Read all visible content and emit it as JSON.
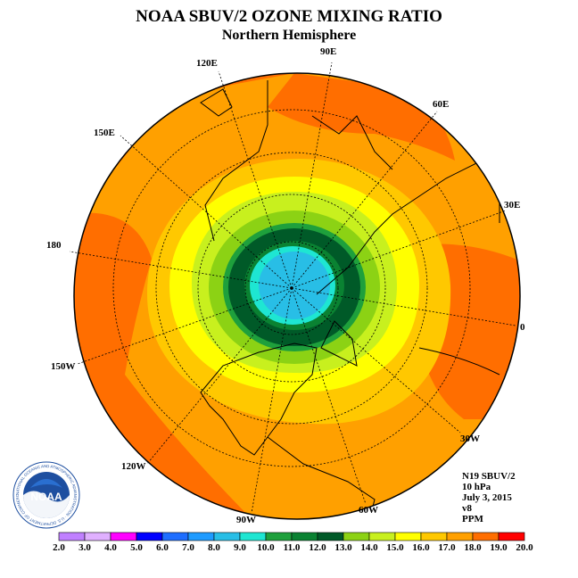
{
  "header": {
    "title": "NOAA SBUV/2 OZONE MIXING RATIO",
    "subtitle": "Northern Hemisphere"
  },
  "map": {
    "projection": "north polar stereographic",
    "longitude_labels": [
      "0",
      "30E",
      "60E",
      "90E",
      "120E",
      "150E",
      "180",
      "150W",
      "120W",
      "90W",
      "60W",
      "30W"
    ],
    "contour_fill_levels_ppm": [
      {
        "from_ppm": 10.0,
        "to_ppm": 11.0,
        "color": "#1ea03c"
      },
      {
        "from_ppm": 11.0,
        "to_ppm": 12.0,
        "color": "#0a8232"
      },
      {
        "from_ppm": 12.0,
        "to_ppm": 13.0,
        "color": "#005a28"
      },
      {
        "from_ppm": 9.0,
        "to_ppm": 10.0,
        "color": "#1ee6d2"
      },
      {
        "from_ppm": 8.0,
        "to_ppm": 9.0,
        "color": "#28bee6"
      },
      {
        "from_ppm": 13.0,
        "to_ppm": 14.0,
        "color": "#8cd214"
      },
      {
        "from_ppm": 14.0,
        "to_ppm": 15.0,
        "color": "#c8f01e"
      },
      {
        "from_ppm": 15.0,
        "to_ppm": 16.0,
        "color": "#ffff00"
      },
      {
        "from_ppm": 16.0,
        "to_ppm": 17.0,
        "color": "#ffc800"
      },
      {
        "from_ppm": 17.0,
        "to_ppm": 18.0,
        "color": "#ffa000"
      },
      {
        "from_ppm": 18.0,
        "to_ppm": 19.0,
        "color": "#ff6e00"
      }
    ]
  },
  "info": {
    "instrument": "N19 SBUV/2",
    "pressure": "10 hPa",
    "date": "July 3, 2015",
    "version": "v8",
    "units": "PPM"
  },
  "logo": {
    "text": "NOAA",
    "ring_text": "NATIONAL OCEANIC AND ATMOSPHERIC ADMINISTRATION · U.S. DEPARTMENT OF COMMERCE"
  },
  "colorbar": {
    "labels": [
      "2.0",
      "3.0",
      "4.0",
      "5.0",
      "6.0",
      "7.0",
      "8.0",
      "9.0",
      "10.0",
      "11.0",
      "12.0",
      "13.0",
      "14.0",
      "15.0",
      "16.0",
      "17.0",
      "18.0",
      "19.0",
      "20.0"
    ],
    "colors": [
      "#c080ff",
      "#e0b0ff",
      "#ff00ff",
      "#0000ff",
      "#1e6eff",
      "#1e9bff",
      "#28bee6",
      "#1ee6d2",
      "#1ea03c",
      "#0a8232",
      "#005a28",
      "#8cd214",
      "#c8f01e",
      "#ffff00",
      "#ffc800",
      "#ffa000",
      "#ff6e00",
      "#ff0000",
      "#8b5a3c"
    ]
  }
}
